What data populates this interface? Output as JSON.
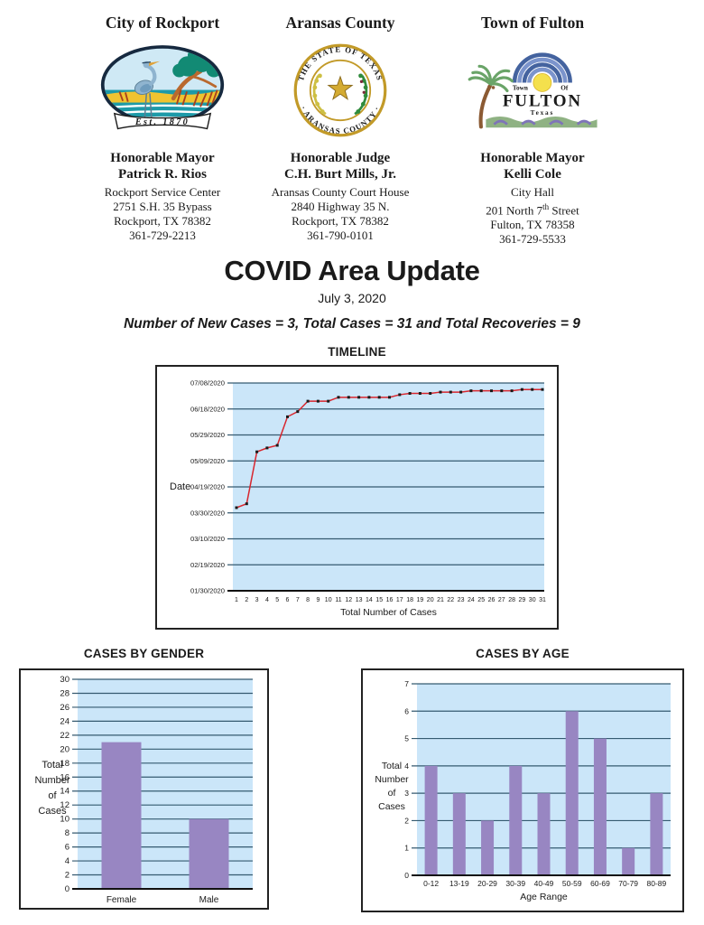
{
  "header": {
    "orgs": [
      {
        "name": "City of Rockport",
        "role": "Honorable Mayor",
        "person": "Patrick R. Rios",
        "address": [
          "Rockport Service Center",
          "2751 S.H. 35 Bypass",
          "Rockport, TX 78382",
          "361-729-2213"
        ],
        "logo": {
          "banner": "Est. 1870"
        }
      },
      {
        "name": "Aransas County",
        "role": "Honorable Judge",
        "person": "C.H. Burt Mills, Jr.",
        "address": [
          "Aransas County Court House",
          "2840 Highway 35 N.",
          "Rockport, TX 78382",
          "361-790-0101"
        ],
        "logo": {
          "ring_top": "THE STATE OF TEXAS",
          "ring_bottom": "· ARANSAS COUNTY ·"
        }
      },
      {
        "name": "Town of Fulton",
        "role": "Honorable Mayor",
        "person": "Kelli Cole",
        "address": [
          "City Hall",
          "Fulton, TX 78358",
          "361-729-5533"
        ],
        "street_line": {
          "pre": "201 North 7",
          "sup": "th",
          "post": " Street"
        },
        "logo": {
          "line1": "Town",
          "line2": "Of",
          "line3": "FULTON",
          "line4": "Texas"
        }
      }
    ]
  },
  "title_block": {
    "title": "COVID Area Update",
    "date": "July 3, 2020",
    "summary": "Number of New Cases = 3, Total Cases = 31 and Total Recoveries = 9"
  },
  "chart_data": [
    {
      "id": "timeline",
      "type": "line",
      "title": "TIMELINE",
      "xlabel": "Total Number of Cases",
      "ylabel": "Date",
      "x": [
        1,
        2,
        3,
        4,
        5,
        6,
        7,
        8,
        9,
        10,
        11,
        12,
        13,
        14,
        15,
        16,
        17,
        18,
        19,
        20,
        21,
        22,
        23,
        24,
        25,
        26,
        27,
        28,
        29,
        30,
        31
      ],
      "dates": [
        "04/03/2020",
        "04/06/2020",
        "05/16/2020",
        "05/19/2020",
        "05/21/2020",
        "06/12/2020",
        "06/16/2020",
        "06/24/2020",
        "06/24/2020",
        "06/24/2020",
        "06/27/2020",
        "06/27/2020",
        "06/27/2020",
        "06/27/2020",
        "06/27/2020",
        "06/27/2020",
        "06/29/2020",
        "06/30/2020",
        "06/30/2020",
        "06/30/2020",
        "07/01/2020",
        "07/01/2020",
        "07/01/2020",
        "07/02/2020",
        "07/02/2020",
        "07/02/2020",
        "07/02/2020",
        "07/02/2020",
        "07/03/2020",
        "07/03/2020",
        "07/03/2020"
      ],
      "y_axis_ticks": [
        "01/30/2020",
        "02/19/2020",
        "03/10/2020",
        "03/30/2020",
        "04/19/2020",
        "05/09/2020",
        "05/29/2020",
        "06/18/2020",
        "07/08/2020"
      ],
      "grid": true,
      "plot_bg": "#cbe6f9",
      "grid_color": "#355a70",
      "line_color": "#d8272f",
      "marker_color": "#1a1a1a"
    },
    {
      "id": "gender",
      "type": "bar",
      "title": "CASES BY GENDER",
      "categories": [
        "Female",
        "Male"
      ],
      "values": [
        21,
        10
      ],
      "ylabel_lines": [
        "Total",
        "Number",
        "of",
        "Cases"
      ],
      "ylim": [
        0,
        30
      ],
      "ytick_step": 2,
      "grid": true,
      "plot_bg": "#cbe6f9",
      "grid_color": "#355a70",
      "bar_color": "#9886c2"
    },
    {
      "id": "age",
      "type": "bar",
      "title": "CASES BY AGE",
      "categories": [
        "0-12",
        "13-19",
        "20-29",
        "30-39",
        "40-49",
        "50-59",
        "60-69",
        "70-79",
        "80-89"
      ],
      "values": [
        4,
        3,
        2,
        4,
        3,
        6,
        5,
        1,
        3
      ],
      "xlabel": "Age Range",
      "ylabel_lines": [
        "Total",
        "Number",
        "of",
        "Cases"
      ],
      "ylim": [
        0,
        7
      ],
      "ytick_step": 1,
      "grid": true,
      "plot_bg": "#cbe6f9",
      "grid_color": "#355a70",
      "bar_color": "#9886c2"
    }
  ]
}
